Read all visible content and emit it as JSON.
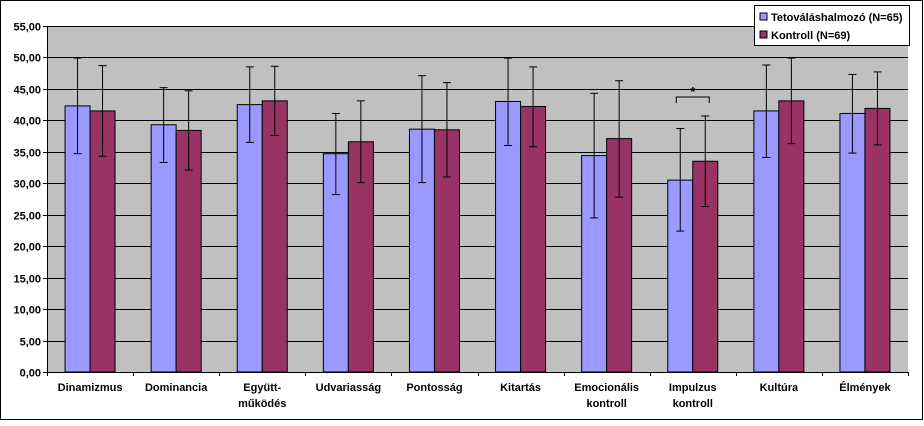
{
  "chart_data": {
    "type": "bar",
    "categories": [
      [
        "Dinamizmus"
      ],
      [
        "Dominancia"
      ],
      [
        "Együtt-",
        "működés"
      ],
      [
        "Udvariasság"
      ],
      [
        "Pontosság"
      ],
      [
        "Kitartás"
      ],
      [
        "Emocionális",
        "kontroll"
      ],
      [
        "Impulzus",
        "kontroll"
      ],
      [
        "Kultúra"
      ],
      [
        "Élmények"
      ]
    ],
    "series": [
      {
        "name": "Tetováláshalmozó (N=65)",
        "color": "#9999ff",
        "values": [
          42.3,
          39.3,
          42.5,
          34.7,
          38.6,
          43.0,
          34.4,
          30.5,
          41.5,
          41.1
        ],
        "err_low": [
          34.7,
          33.3,
          36.5,
          28.2,
          30.1,
          36.0,
          24.5,
          22.4,
          34.1,
          34.8
        ],
        "err_high": [
          49.9,
          45.2,
          48.5,
          41.1,
          47.1,
          49.9,
          44.3,
          38.7,
          48.8,
          47.3
        ]
      },
      {
        "name": "Kontroll (N=69)",
        "color": "#993366",
        "values": [
          41.5,
          38.4,
          43.1,
          36.6,
          38.5,
          42.2,
          37.1,
          33.5,
          43.1,
          41.9
        ],
        "err_low": [
          34.3,
          32.1,
          37.6,
          30.1,
          31.0,
          35.8,
          27.8,
          26.3,
          36.3,
          36.1
        ],
        "err_high": [
          48.7,
          44.7,
          48.6,
          43.1,
          46.0,
          48.5,
          46.3,
          40.7,
          49.9,
          47.7
        ]
      }
    ],
    "y_ticks": [
      "0,00",
      "5,00",
      "10,00",
      "15,00",
      "20,00",
      "25,00",
      "30,00",
      "35,00",
      "40,00",
      "45,00",
      "50,00",
      "55,00"
    ],
    "ylim": [
      0,
      55
    ],
    "grid": true,
    "legend_position": "top-right",
    "annotations": [
      {
        "text": "*",
        "category_index": 7
      }
    ]
  }
}
